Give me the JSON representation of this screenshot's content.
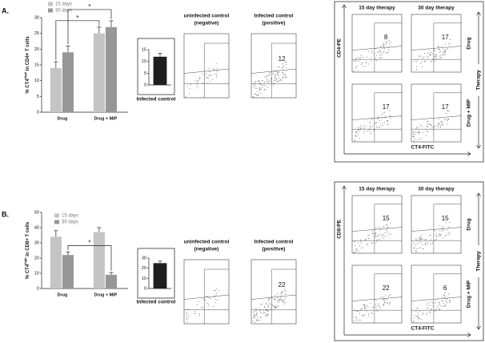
{
  "chart_data": [
    {
      "type": "bar",
      "ylabel": [
        "% CT4",
        "high",
        " in CD4+ T cells"
      ],
      "categories": [
        "Drug",
        "Drug + MIP"
      ],
      "series": [
        {
          "name": "15 days",
          "color": "#c4c4c4",
          "values": [
            14,
            25
          ],
          "errors": [
            2,
            2
          ]
        },
        {
          "name": "30 days",
          "color": "#979797",
          "values": [
            19,
            27
          ],
          "errors": [
            2,
            2
          ]
        }
      ],
      "ylim": [
        0,
        30
      ],
      "yticks": [
        0,
        5,
        10,
        15,
        20,
        25,
        30
      ],
      "annotations": [
        "*",
        "*"
      ]
    },
    {
      "type": "bar",
      "xlabel": "Infected control",
      "values": [
        12
      ],
      "errors": [
        1.5
      ],
      "color": "#1e1e1e",
      "ylim": [
        0,
        15
      ],
      "yticks": [
        0,
        5,
        10,
        15
      ]
    },
    {
      "type": "bar",
      "ylabel": [
        "% CT4",
        "high",
        " in CD8+ T cells"
      ],
      "categories": [
        "Drug",
        "Drug + MIP"
      ],
      "series": [
        {
          "name": "15 days",
          "color": "#c4c4c4",
          "values": [
            34,
            37
          ],
          "errors": [
            4,
            3
          ]
        },
        {
          "name": "30 days",
          "color": "#979797",
          "values": [
            22,
            9
          ],
          "errors": [
            2,
            1.5
          ]
        }
      ],
      "ylim": [
        0,
        50
      ],
      "yticks": [
        0,
        10,
        20,
        30,
        40,
        50
      ],
      "annotations": [
        "*"
      ]
    },
    {
      "type": "bar",
      "xlabel": "Infected control",
      "values": [
        25
      ],
      "errors": [
        2
      ],
      "color": "#1e1e1e",
      "ylim": [
        0,
        30
      ],
      "yticks": [
        0,
        10,
        20,
        30
      ]
    }
  ],
  "figure": {
    "panels": [
      {
        "label": "A.",
        "controls": {
          "negative": [
            "uninfected control",
            "(negative)"
          ],
          "positive": [
            "Infected control",
            "(positive)"
          ],
          "positive_value": 12
        },
        "therapy": {
          "columns": [
            "15 day therapy",
            "30 day therapy"
          ],
          "rows": [
            "Drug",
            "Drug + MIP"
          ],
          "row_axis": "Therapy",
          "y_axis": "CD4-PE",
          "x_axis": "CT4-FITC",
          "values": [
            [
              8,
              17
            ],
            [
              17,
              17
            ]
          ]
        }
      },
      {
        "label": "B.",
        "controls": {
          "negative": [
            "uninfected control",
            "(negative)"
          ],
          "positive": [
            "Infected control",
            "(positive)"
          ],
          "positive_value": 22
        },
        "therapy": {
          "columns": [
            "15 day therapy",
            "30 day therapy"
          ],
          "rows": [
            "Drug",
            "Drug + MIP"
          ],
          "row_axis": "Therapy",
          "y_axis": "CD8-PE",
          "x_axis": "CT4-FITC",
          "values": [
            [
              15,
              15
            ],
            [
              22,
              6
            ]
          ]
        }
      }
    ]
  }
}
